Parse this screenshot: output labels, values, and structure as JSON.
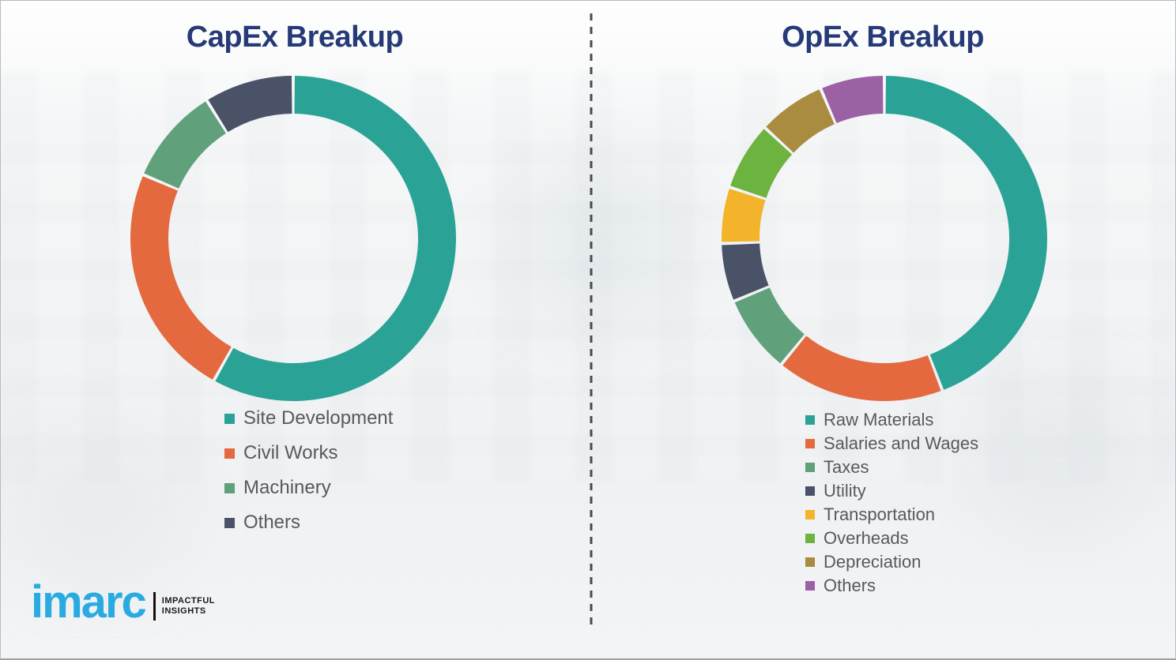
{
  "chart_data": [
    {
      "type": "pie",
      "variant": "donut",
      "title": "CapEx Breakup",
      "legend_position": "below-left",
      "values_are_percent_estimates": true,
      "start_angle_deg": 0,
      "segments": [
        {
          "label": "Site Development",
          "value": 58.1,
          "color": "#2aa396"
        },
        {
          "label": "Civil Works",
          "value": 23.3,
          "color": "#e5693f"
        },
        {
          "label": "Machinery",
          "value": 9.7,
          "color": "#60a17c"
        },
        {
          "label": "Others",
          "value": 8.9,
          "color": "#4a5268"
        }
      ]
    },
    {
      "type": "pie",
      "variant": "donut",
      "title": "OpEx Breakup",
      "legend_position": "below-left",
      "values_are_percent_estimates": true,
      "start_angle_deg": 0,
      "segments": [
        {
          "label": "Raw Materials",
          "value": 44.2,
          "color": "#2aa396"
        },
        {
          "label": "Salaries and Wages",
          "value": 16.7,
          "color": "#e5693f"
        },
        {
          "label": "Taxes",
          "value": 7.8,
          "color": "#60a17c"
        },
        {
          "label": "Utility",
          "value": 5.8,
          "color": "#4a5268"
        },
        {
          "label": "Transportation",
          "value": 5.6,
          "color": "#f3b32a"
        },
        {
          "label": "Overheads",
          "value": 6.8,
          "color": "#6db33f"
        },
        {
          "label": "Depreciation",
          "value": 6.7,
          "color": "#a98c3f"
        },
        {
          "label": "Others",
          "value": 6.4,
          "color": "#9c61a5"
        }
      ]
    }
  ],
  "branding": {
    "logo_text": "imarc",
    "tagline_line1": "IMPACTFUL",
    "tagline_line2": "INSIGHTS",
    "brand_color": "#29abe2"
  }
}
